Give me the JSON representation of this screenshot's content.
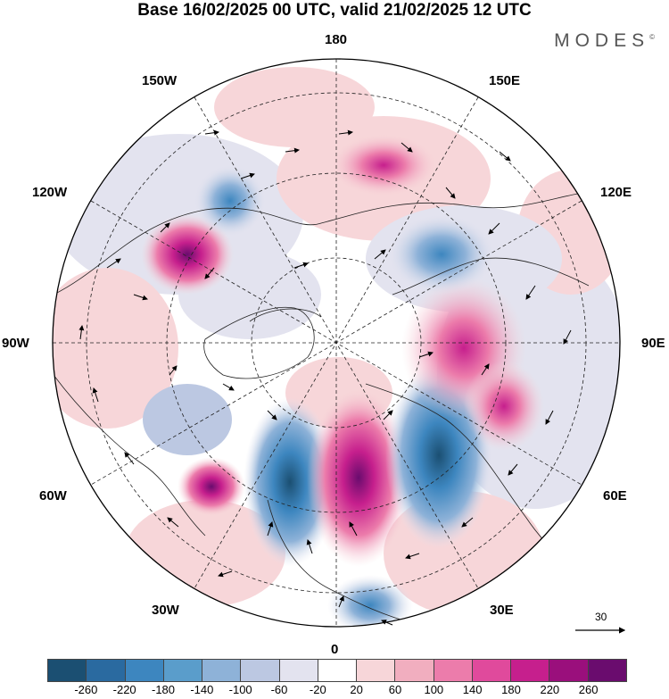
{
  "title": "Base 16/02/2025 00 UTC, valid 21/02/2025 12 UTC",
  "brand": "MODES",
  "brand_mark": "©",
  "longitude_labels": {
    "lon_180": "180",
    "lon_150E": "150E",
    "lon_120E": "120E",
    "lon_90E": "90E",
    "lon_60E": "60E",
    "lon_30E": "30E",
    "lon_0": "0",
    "lon_30W": "30W",
    "lon_60W": "60W",
    "lon_90W": "90W",
    "lon_120W": "120W",
    "lon_150W": "150W"
  },
  "reference_vector_label": "30",
  "colorbar": {
    "ticks": [
      "-260",
      "-220",
      "-180",
      "-140",
      "-100",
      "-60",
      "-20",
      "20",
      "60",
      "100",
      "140",
      "180",
      "220",
      "260"
    ],
    "colors": [
      "#1b4f72",
      "#2a6aa0",
      "#3d86bf",
      "#5a9dcb",
      "#8eb2d8",
      "#bcc8e2",
      "#e3e3ef",
      "#ffffff",
      "#f7d6d9",
      "#f1aebf",
      "#ec7cab",
      "#e04a9c",
      "#c61f8d",
      "#9a0f7c",
      "#6a0c6e"
    ]
  },
  "features": {
    "anomaly_cells": [
      {
        "name": "negative-cell-north-atlantic",
        "sign": "negative",
        "level": -260
      },
      {
        "name": "positive-cell-europe",
        "sign": "positive",
        "level": 260
      },
      {
        "name": "negative-cell-western-russia",
        "sign": "negative",
        "level": -260
      },
      {
        "name": "positive-cell-alaska",
        "sign": "positive",
        "level": 180
      },
      {
        "name": "positive-cell-siberia",
        "sign": "positive",
        "level": 180
      },
      {
        "name": "negative-cell-east-siberia",
        "sign": "negative",
        "level": -140
      },
      {
        "name": "positive-cell-labrador-sea",
        "sign": "positive",
        "level": 180
      },
      {
        "name": "negative-cell-mediterranean",
        "sign": "negative",
        "level": -140
      }
    ]
  }
}
